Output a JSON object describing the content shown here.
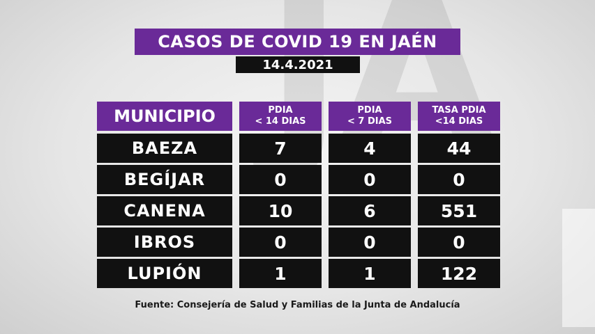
{
  "title": "CASOS DE COVID 19 EN JAÉN",
  "date": "14.4.2021",
  "headers": {
    "municipio": "MUNICIPIO",
    "pdia14_line1": "PDIA",
    "pdia14_line2": "< 14 DIAS",
    "pdia7_line1": "PDIA",
    "pdia7_line2": "< 7 DIAS",
    "tasa_line1": "TASA PDIA",
    "tasa_line2": "<14 DIAS"
  },
  "rows": [
    {
      "municipio": "BAEZA",
      "pdia14": "7",
      "pdia7": "4",
      "tasa": "44"
    },
    {
      "municipio": "BEGÍJAR",
      "pdia14": "0",
      "pdia7": "0",
      "tasa": "0"
    },
    {
      "municipio": "CANENA",
      "pdia14": "10",
      "pdia7": "6",
      "tasa": "551"
    },
    {
      "municipio": "IBROS",
      "pdia14": "0",
      "pdia7": "0",
      "tasa": "0"
    },
    {
      "municipio": "LUPIÓN",
      "pdia14": "1",
      "pdia7": "1",
      "tasa": "122"
    }
  ],
  "source": "Fuente: Consejería de Salud y Familias de la Junta de Andalucía",
  "colors": {
    "accent": "#6a2a98",
    "cell": "#111111"
  }
}
